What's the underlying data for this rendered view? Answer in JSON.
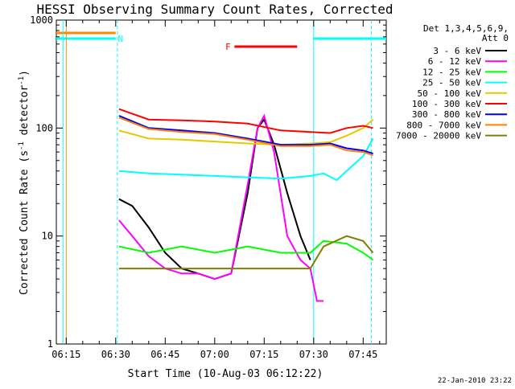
{
  "chart_data": {
    "type": "line",
    "title": "HESSI Observing Summary Count Rates, Corrected",
    "xlabel": "Start Time (10-Aug-03 06:12:22)",
    "ylabel_main": "Corrected Count Rate (s",
    "ylabel_sup1": "-1",
    "ylabel_mid": " detector",
    "ylabel_sup2": "-1",
    "ylabel_end": ")",
    "y_scale": "log",
    "ylim": [
      1,
      1000
    ],
    "xlim": [
      "06:12",
      "07:52"
    ],
    "x_ticks": [
      {
        "label": "06:15",
        "min": 375
      },
      {
        "label": "06:30",
        "min": 390
      },
      {
        "label": "06:45",
        "min": 405
      },
      {
        "label": "07:00",
        "min": 420
      },
      {
        "label": "07:15",
        "min": 435
      },
      {
        "label": "07:30",
        "min": 450
      },
      {
        "label": "07:45",
        "min": 465
      }
    ],
    "y_ticks": [
      {
        "label": "1",
        "v": 1
      },
      {
        "label": "10",
        "v": 10
      },
      {
        "label": "100",
        "v": 100
      },
      {
        "label": "1000",
        "v": 1000
      }
    ],
    "legend_header": [
      "Det 1,3,4,5,6,9,",
      "Att 0"
    ],
    "legend_placement": "right",
    "flags": [
      {
        "label": "F",
        "start": "07:06",
        "end": "07:25",
        "color": "#ff0000"
      },
      {
        "label": "N",
        "start": "06:12",
        "end": "06:30",
        "color": "#00ffff"
      },
      {
        "label": "",
        "start": "07:30",
        "end": "07:52",
        "color": "#00ffff"
      },
      {
        "label": "",
        "start": "06:12",
        "end": "06:30",
        "color": "#ff8800"
      }
    ],
    "series": [
      {
        "name": "3 - 6 keV",
        "color": "#000000",
        "x": [
          "06:31",
          "06:35",
          "06:40",
          "06:45",
          "06:50",
          "06:55",
          "07:00",
          "07:05",
          "07:10",
          "07:13",
          "07:15",
          "07:18",
          "07:22",
          "07:26",
          "07:29"
        ],
        "y": [
          22,
          19,
          12,
          7,
          5,
          4.5,
          4,
          4.5,
          25,
          100,
          120,
          70,
          25,
          10,
          6
        ]
      },
      {
        "name": "6 - 12 keV",
        "color": "#ff00ff",
        "x": [
          "06:31",
          "06:35",
          "06:40",
          "06:45",
          "06:50",
          "06:55",
          "07:00",
          "07:05",
          "07:10",
          "07:13",
          "07:15",
          "07:18",
          "07:22",
          "07:26",
          "07:29",
          "07:31",
          "07:33"
        ],
        "y": [
          14,
          10,
          6.5,
          5,
          4.5,
          4.5,
          4,
          4.5,
          30,
          100,
          130,
          60,
          10,
          6,
          5,
          2.5,
          2.5
        ]
      },
      {
        "name": "12 - 25 keV",
        "color": "#00ff00",
        "x": [
          "06:31",
          "06:40",
          "06:50",
          "07:00",
          "07:10",
          "07:20",
          "07:29",
          "07:33",
          "07:40",
          "07:45",
          "07:48"
        ],
        "y": [
          8,
          7,
          8,
          7,
          8,
          7,
          7,
          9,
          8.5,
          7,
          6
        ]
      },
      {
        "name": "25 - 50 keV",
        "color": "#00ffff",
        "x": [
          "06:31",
          "06:40",
          "06:50",
          "07:00",
          "07:10",
          "07:20",
          "07:29",
          "07:33",
          "07:37",
          "07:40",
          "07:45",
          "07:48"
        ],
        "y": [
          40,
          38,
          37,
          36,
          35,
          34,
          36,
          38,
          33,
          40,
          55,
          80
        ]
      },
      {
        "name": "50 - 100 keV",
        "color": "#e6c800",
        "x": [
          "06:31",
          "06:40",
          "06:50",
          "07:00",
          "07:10",
          "07:20",
          "07:29",
          "07:35",
          "07:40",
          "07:45",
          "07:48"
        ],
        "y": [
          95,
          80,
          78,
          75,
          72,
          70,
          72,
          74,
          85,
          100,
          120
        ]
      },
      {
        "name": "100 - 300 keV",
        "color": "#ff0000",
        "x": [
          "06:31",
          "06:40",
          "06:50",
          "07:00",
          "07:10",
          "07:20",
          "07:29",
          "07:35",
          "07:40",
          "07:45",
          "07:48"
        ],
        "y": [
          150,
          120,
          118,
          115,
          110,
          95,
          92,
          90,
          100,
          105,
          100
        ]
      },
      {
        "name": "300 - 800 keV",
        "color": "#0000ff",
        "x": [
          "06:31",
          "06:40",
          "06:50",
          "07:00",
          "07:10",
          "07:20",
          "07:29",
          "07:35",
          "07:40",
          "07:45",
          "07:48"
        ],
        "y": [
          130,
          100,
          95,
          90,
          80,
          70,
          70,
          72,
          65,
          62,
          58
        ]
      },
      {
        "name": "800 - 7000 keV",
        "color": "#ff8000",
        "x": [
          "06:31",
          "06:40",
          "06:50",
          "07:00",
          "07:10",
          "07:20",
          "07:29",
          "07:35",
          "07:40",
          "07:45",
          "07:48"
        ],
        "y": [
          125,
          98,
          92,
          88,
          78,
          68,
          68,
          70,
          62,
          60,
          56
        ]
      },
      {
        "name": "7000 - 20000 keV",
        "color": "#808000",
        "x": [
          "06:31",
          "06:40",
          "06:50",
          "07:00",
          "07:10",
          "07:20",
          "07:29",
          "07:33",
          "07:40",
          "07:45",
          "07:48"
        ],
        "y": [
          5,
          5,
          5,
          5,
          5,
          5,
          5,
          8,
          10,
          9,
          7
        ]
      }
    ],
    "footer_date": "22-Jan-2010 23:22"
  }
}
